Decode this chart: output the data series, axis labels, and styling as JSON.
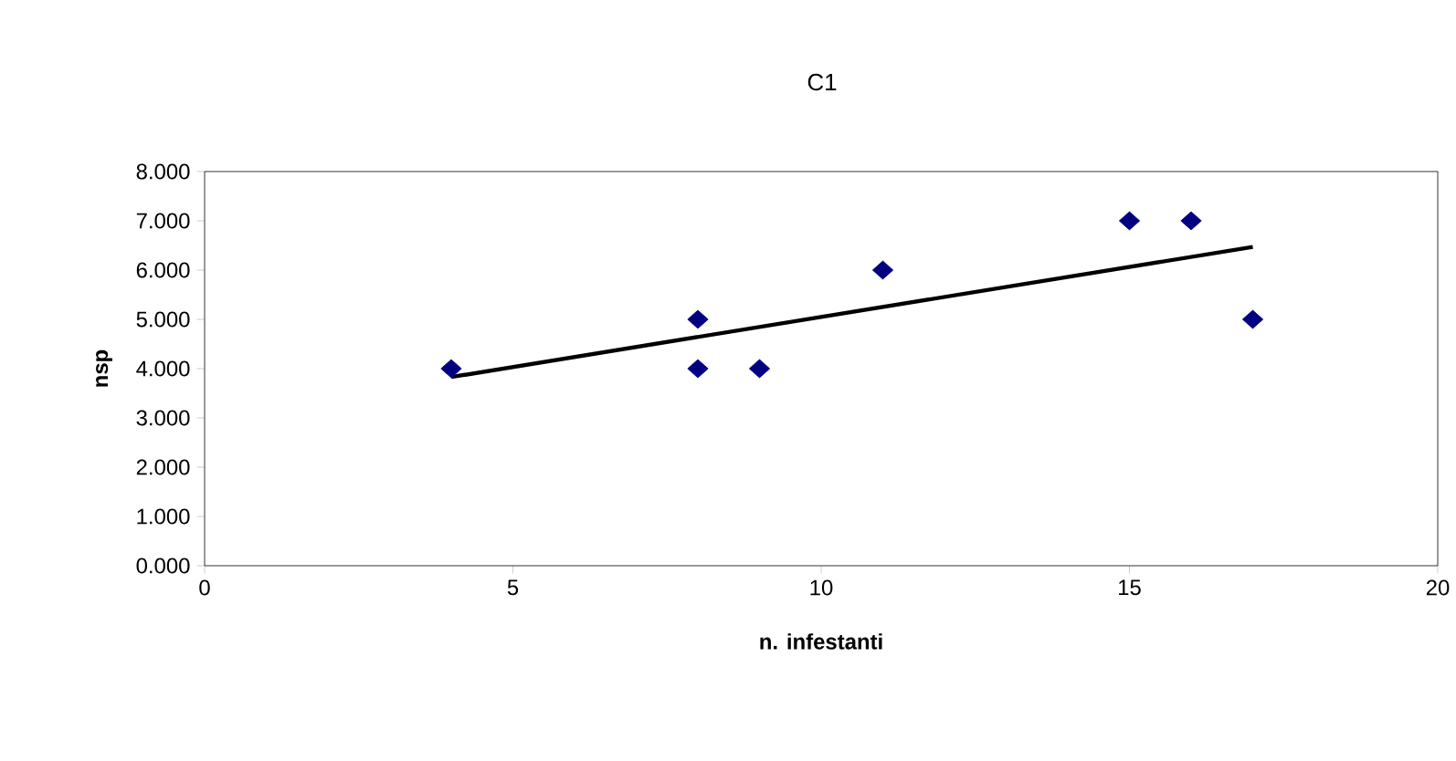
{
  "chart_data": {
    "type": "scatter",
    "title": "C1",
    "xlabel": "n. infestanti",
    "ylabel": "nsp",
    "xlim": [
      0,
      20
    ],
    "xticks": [
      0,
      5,
      10,
      15,
      20
    ],
    "ylim": [
      0,
      8
    ],
    "yticks": [
      {
        "value": 0,
        "label": "0.000"
      },
      {
        "value": 1,
        "label": "1.000"
      },
      {
        "value": 2,
        "label": "2.000"
      },
      {
        "value": 3,
        "label": "3.000"
      },
      {
        "value": 4,
        "label": "4.000"
      },
      {
        "value": 5,
        "label": "5.000"
      },
      {
        "value": 6,
        "label": "6.000"
      },
      {
        "value": 7,
        "label": "7.000"
      },
      {
        "value": 8,
        "label": "8.000"
      }
    ],
    "grid": false,
    "series": [
      {
        "color": "#000080",
        "marker": "diamond",
        "x": [
          4,
          8,
          8,
          9,
          11,
          15,
          16,
          17
        ],
        "values": [
          4,
          5,
          4,
          4,
          6,
          7,
          7,
          5
        ]
      },
      {
        "type": "line",
        "color": "#000000",
        "marker": "none",
        "line_style": "solid",
        "x": [
          4,
          17
        ],
        "values": [
          3.83,
          6.47
        ]
      }
    ]
  }
}
